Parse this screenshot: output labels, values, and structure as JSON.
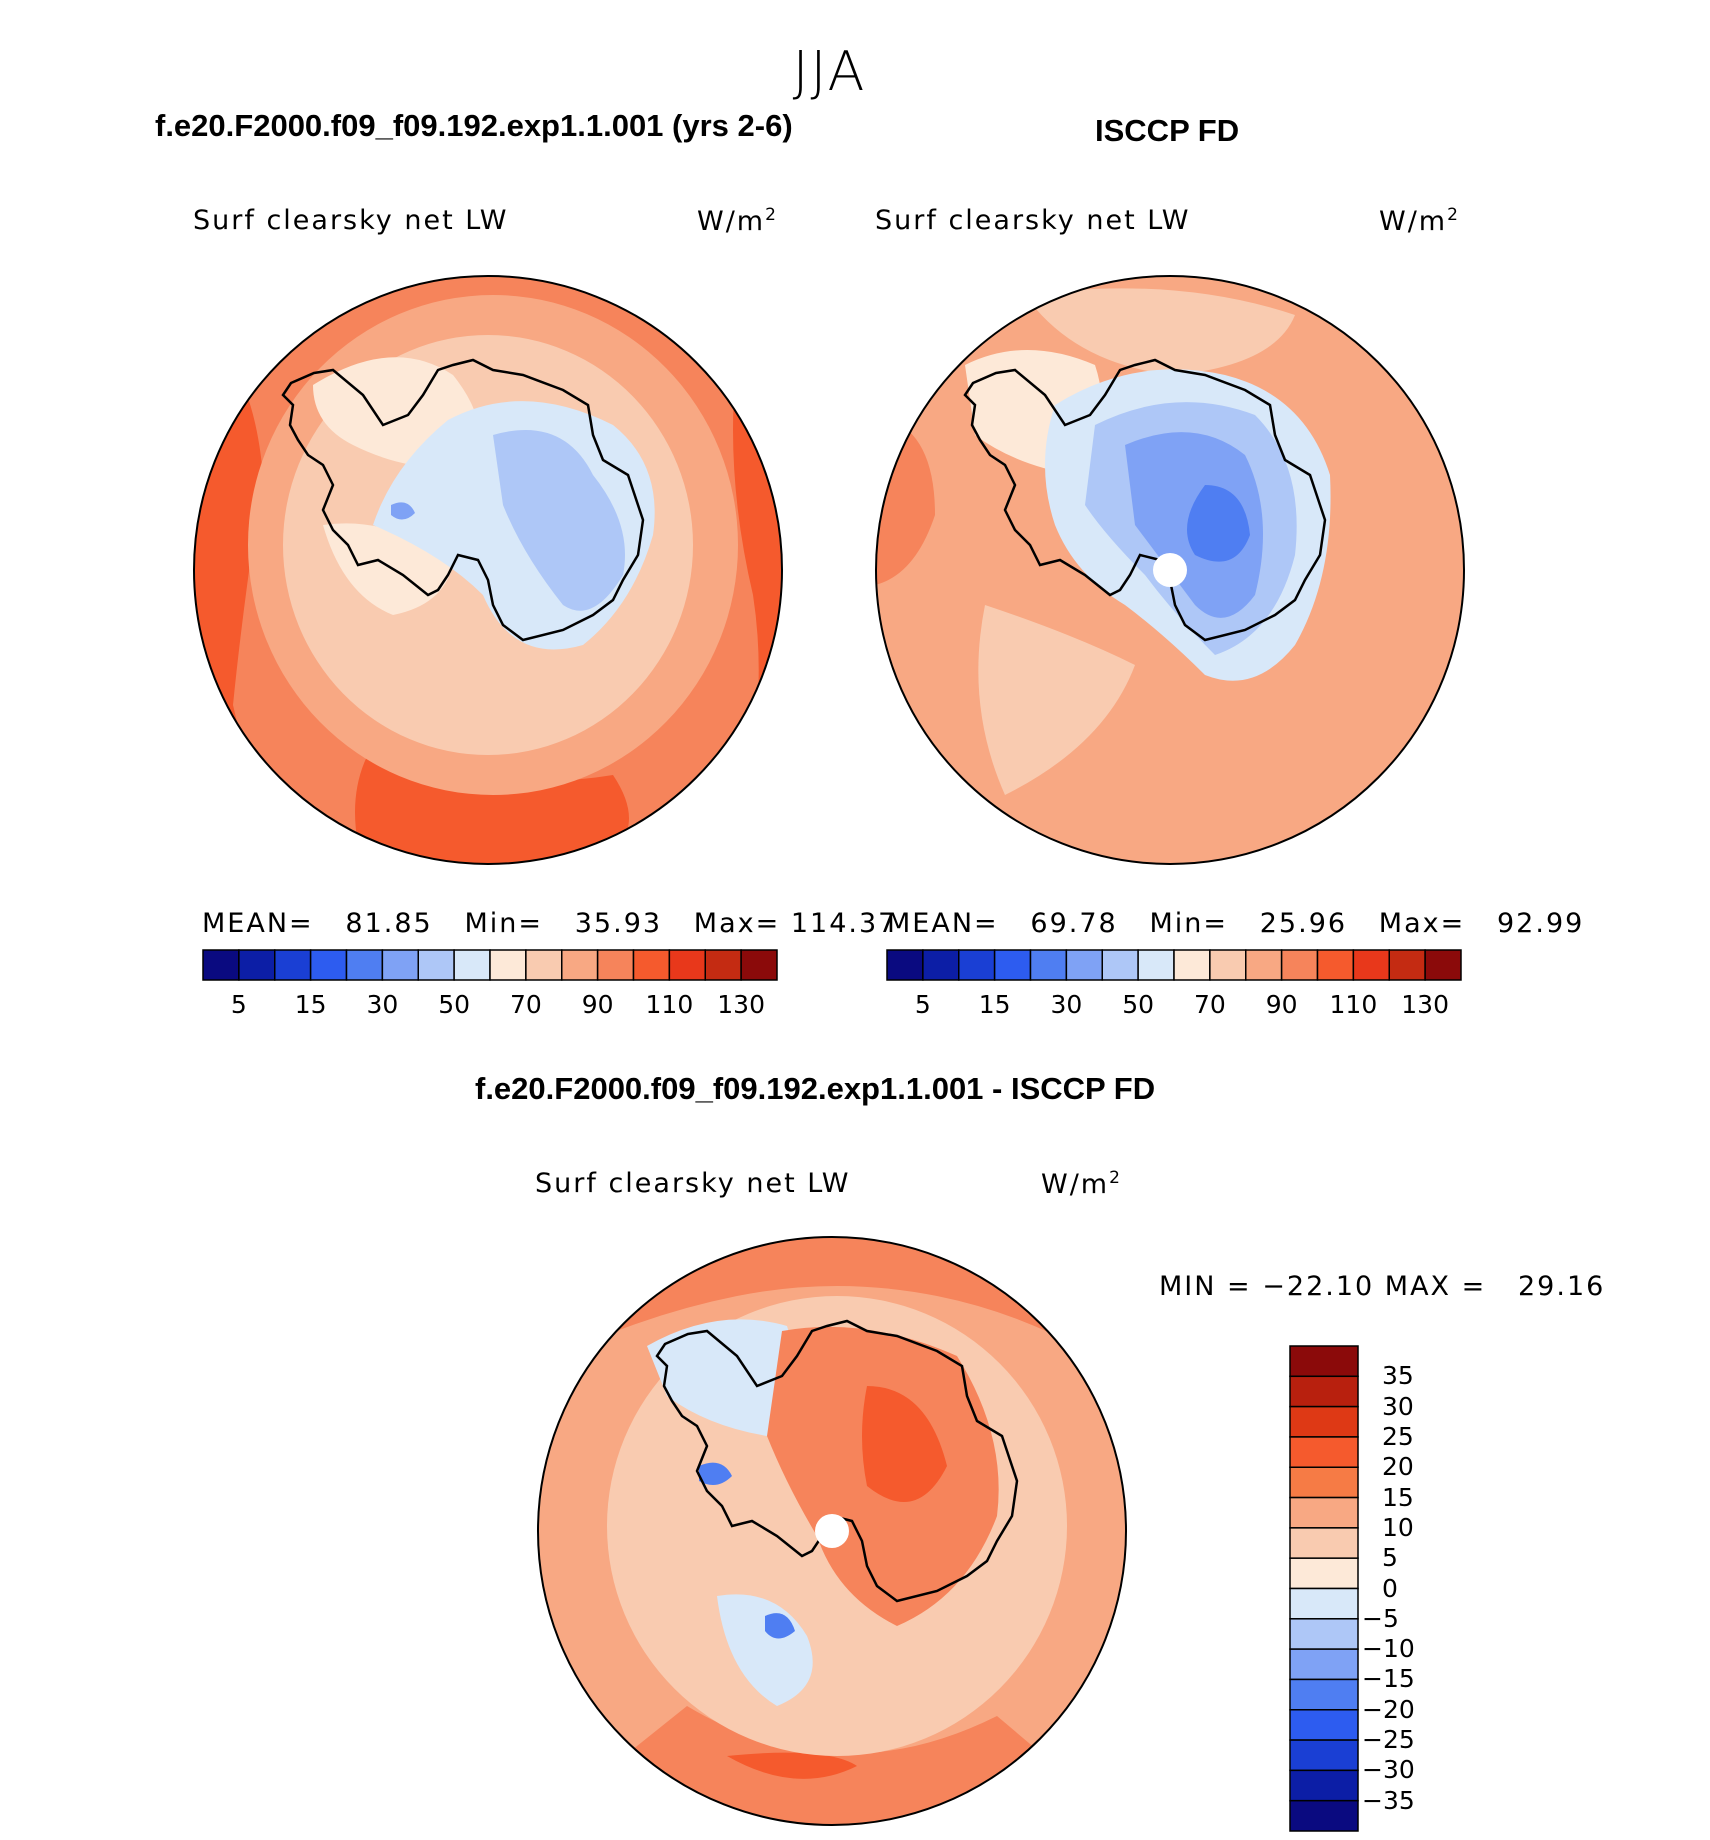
{
  "season": "JJA",
  "panels": [
    {
      "id": "model",
      "title": "f.e20.F2000.f09_f09.192.exp1.1.001 (yrs 2-6)",
      "variable": "Surf clearsky net LW",
      "units": "W/m",
      "units_sup": "2",
      "mean_label": "MEAN=",
      "mean": "81.85",
      "min_label": "Min=",
      "min": "35.93",
      "max_label": "Max=",
      "max": "114.37"
    },
    {
      "id": "obs",
      "title": "ISCCP FD",
      "variable": "Surf clearsky net LW",
      "units": "W/m",
      "units_sup": "2",
      "mean_label": "MEAN=",
      "mean": "69.78",
      "min_label": "Min=",
      "min": "25.96",
      "max_label": "Max=",
      "max": "92.99"
    }
  ],
  "difference": {
    "title": "f.e20.F2000.f09_f09.192.exp1.1.001 - ISCCP FD",
    "variable": "Surf clearsky net LW",
    "units": "W/m",
    "units_sup": "2",
    "min_label": "MIN =",
    "min": "−22.10",
    "max_label": "MAX =",
    "max": "29.16"
  },
  "colorbar_horizontal": {
    "colors": [
      "#0a0a80",
      "#0c1ea6",
      "#1a3fd4",
      "#2d5cf0",
      "#4f7ef2",
      "#7fa2f5",
      "#aec7f7",
      "#d8e8f9",
      "#fde9d8",
      "#f9cbb0",
      "#f8a883",
      "#f6845b",
      "#f55a2d",
      "#e8381b",
      "#c42b12",
      "#8b0a0a"
    ],
    "ticks": [
      "5",
      "15",
      "30",
      "50",
      "70",
      "90",
      "110",
      "130"
    ]
  },
  "colorbar_vertical": {
    "colors": [
      "#8b0a0a",
      "#b8200e",
      "#de3915",
      "#f55a2d",
      "#f67b45",
      "#f8a883",
      "#f9cbb0",
      "#fde9d8",
      "#d8e8f9",
      "#aec7f7",
      "#7fa2f5",
      "#4f7ef2",
      "#2d5cf0",
      "#1a3fd4",
      "#0c1ea6",
      "#0a0a80"
    ],
    "ticks": [
      "35",
      "30",
      "25",
      "20",
      "15",
      "10",
      "5",
      "0",
      "−5",
      "−10",
      "−15",
      "−20",
      "−25",
      "−30",
      "−35"
    ]
  },
  "palette": {
    "coastline": "#000000",
    "pole_hole": "#ffffff"
  }
}
